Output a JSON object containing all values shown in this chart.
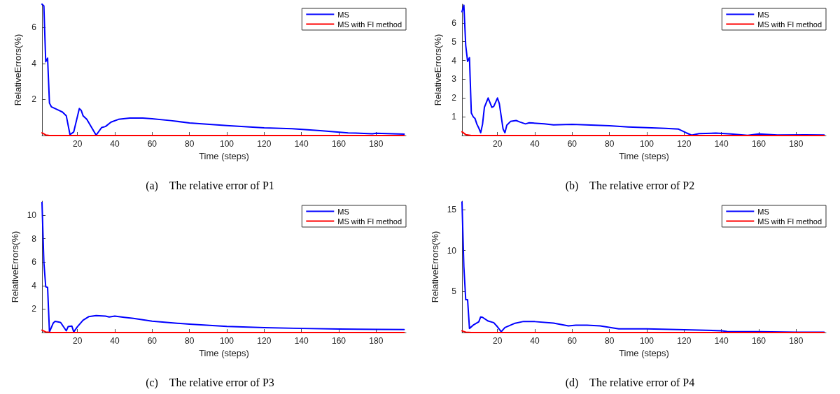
{
  "chart_data": [
    {
      "type": "line",
      "title": "(a)    The relative error of P1",
      "xlabel": "Time (steps)",
      "ylabel": "RelativeErrors(%)",
      "xlim": [
        1,
        196
      ],
      "xticks": [
        20,
        40,
        60,
        80,
        100,
        120,
        140,
        160,
        180
      ],
      "ylim": [
        0,
        7.3
      ],
      "yticks": [
        2,
        4,
        6
      ],
      "legend": "top right",
      "grid": false,
      "marker": "none",
      "line_style": "solid",
      "series": [
        {
          "name": "MS",
          "color": "#0000ff",
          "x": [
            1,
            2,
            3,
            4,
            5,
            6,
            10,
            12,
            14,
            16,
            18,
            21,
            22,
            23,
            25,
            30,
            33,
            35,
            38,
            42,
            48,
            55,
            60,
            70,
            80,
            100,
            120,
            135,
            150,
            165,
            178,
            180,
            195
          ],
          "values": [
            7.3,
            7.2,
            4.1,
            4.3,
            1.8,
            1.6,
            1.4,
            1.3,
            1.1,
            0.05,
            0.2,
            1.5,
            1.4,
            1.1,
            0.9,
            0.02,
            0.45,
            0.5,
            0.75,
            0.9,
            0.97,
            0.97,
            0.93,
            0.83,
            0.7,
            0.55,
            0.43,
            0.38,
            0.27,
            0.15,
            0.1,
            0.13,
            0.08
          ]
        },
        {
          "name": "MS with FI method",
          "color": "#ff0000",
          "x": [
            1,
            3,
            5,
            195
          ],
          "values": [
            0.15,
            0.03,
            0,
            0
          ]
        }
      ]
    },
    {
      "type": "line",
      "title": "(b)    The relative error of P2",
      "xlabel": "Time (steps)",
      "ylabel": "RelativeErrors(%)",
      "xlim": [
        1,
        196
      ],
      "xticks": [
        20,
        40,
        60,
        80,
        100,
        120,
        140,
        160,
        180
      ],
      "ylim": [
        0,
        7
      ],
      "yticks": [
        1,
        2,
        3,
        4,
        5,
        6
      ],
      "legend": "top right",
      "grid": false,
      "marker": "none",
      "line_style": "solid",
      "series": [
        {
          "name": "MS",
          "color": "#0000ff",
          "x": [
            1,
            2,
            3,
            4,
            5,
            6,
            7,
            8,
            9,
            10,
            11,
            12,
            13,
            15,
            17,
            18,
            20,
            21,
            23,
            24,
            25,
            27,
            30,
            32,
            35,
            37,
            45,
            50,
            60,
            70,
            80,
            90,
            100,
            110,
            117,
            121,
            124,
            128,
            137,
            145,
            154,
            160,
            170,
            185,
            195
          ],
          "values": [
            6.6,
            6.95,
            4.8,
            3.95,
            4.15,
            1.2,
            1.0,
            0.9,
            0.6,
            0.4,
            0.15,
            0.6,
            1.5,
            2.0,
            1.5,
            1.55,
            2.0,
            1.7,
            0.35,
            0.15,
            0.55,
            0.75,
            0.8,
            0.72,
            0.62,
            0.68,
            0.62,
            0.57,
            0.6,
            0.56,
            0.52,
            0.46,
            0.42,
            0.38,
            0.34,
            0.15,
            0.02,
            0.1,
            0.13,
            0.08,
            0.01,
            0.08,
            0.03,
            0.04,
            0.03
          ]
        },
        {
          "name": "MS with FI method",
          "color": "#ff0000",
          "x": [
            1,
            3,
            6,
            195
          ],
          "values": [
            0.2,
            0.05,
            0,
            0
          ]
        }
      ]
    },
    {
      "type": "line",
      "title": "(c)    The relative error of P3",
      "xlabel": "Time (steps)",
      "ylabel": "RelativeErrors(%)",
      "xlim": [
        1,
        196
      ],
      "xticks": [
        20,
        40,
        60,
        80,
        100,
        120,
        140,
        160,
        180
      ],
      "ylim": [
        0,
        11.2
      ],
      "yticks": [
        2,
        4,
        6,
        8,
        10
      ],
      "legend": "top right",
      "grid": false,
      "marker": "none",
      "line_style": "solid",
      "series": [
        {
          "name": "MS",
          "color": "#0000ff",
          "x": [
            1,
            2,
            3,
            4,
            5,
            7,
            8,
            10,
            11,
            14,
            15,
            17,
            18,
            20,
            23,
            26,
            30,
            35,
            37,
            40,
            45,
            50,
            60,
            70,
            80,
            100,
            120,
            140,
            160,
            180,
            195
          ],
          "values": [
            11.1,
            6,
            3.9,
            3.85,
            0.05,
            0.8,
            0.95,
            0.9,
            0.85,
            0.15,
            0.5,
            0.55,
            0.05,
            0.5,
            1.05,
            1.35,
            1.45,
            1.4,
            1.33,
            1.4,
            1.3,
            1.2,
            0.97,
            0.83,
            0.72,
            0.52,
            0.42,
            0.35,
            0.3,
            0.27,
            0.25
          ]
        },
        {
          "name": "MS with FI method",
          "color": "#ff0000",
          "x": [
            1,
            3,
            6,
            195
          ],
          "values": [
            0.2,
            0.05,
            0,
            0
          ]
        }
      ]
    },
    {
      "type": "line",
      "title": "(d)    The relative error of P4",
      "xlabel": "Time (steps)",
      "ylabel": "RelativeErrors(%)",
      "xlim": [
        1,
        196
      ],
      "xticks": [
        20,
        40,
        60,
        80,
        100,
        120,
        140,
        160,
        180
      ],
      "ylim": [
        0,
        16
      ],
      "yticks": [
        5,
        10,
        15
      ],
      "legend": "top right",
      "grid": false,
      "marker": "none",
      "line_style": "solid",
      "series": [
        {
          "name": "MS",
          "color": "#0000ff",
          "x": [
            1,
            2,
            3,
            4,
            5,
            7,
            10,
            11,
            12,
            15,
            18,
            20,
            22,
            24,
            29,
            34,
            40,
            50,
            58,
            62,
            68,
            75,
            85,
            92,
            100,
            120,
            140,
            143,
            160,
            180,
            195
          ],
          "values": [
            15.9,
            8,
            4.0,
            4.0,
            0.5,
            0.9,
            1.3,
            1.9,
            1.85,
            1.4,
            1.2,
            0.7,
            0.1,
            0.6,
            1.1,
            1.35,
            1.33,
            1.15,
            0.8,
            0.9,
            0.9,
            0.8,
            0.45,
            0.45,
            0.45,
            0.35,
            0.22,
            0.12,
            0.1,
            0.05,
            0.05
          ]
        },
        {
          "name": "MS with FI method",
          "color": "#ff0000",
          "x": [
            1,
            3,
            6,
            195
          ],
          "values": [
            0.2,
            0.05,
            0,
            0
          ]
        }
      ]
    }
  ]
}
